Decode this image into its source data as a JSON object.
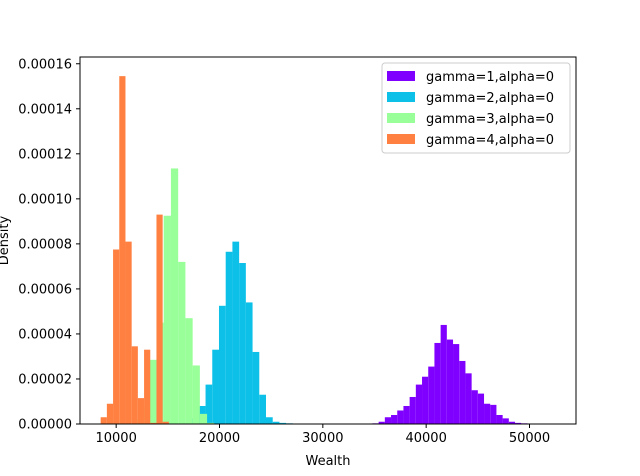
{
  "chart_data": {
    "type": "bar",
    "subtype": "histogram",
    "xlabel": "Wealth",
    "ylabel": "Density",
    "xlim": [
      6500,
      54500
    ],
    "ylim": [
      0,
      0.000163
    ],
    "xticks": [
      {
        "value": 10000,
        "label": "10000"
      },
      {
        "value": 20000,
        "label": "20000"
      },
      {
        "value": 30000,
        "label": "30000"
      },
      {
        "value": 40000,
        "label": "40000"
      },
      {
        "value": 50000,
        "label": "50000"
      }
    ],
    "yticks": [
      {
        "value": 0,
        "label": "0.00000"
      },
      {
        "value": 2e-05,
        "label": "0.00002"
      },
      {
        "value": 4e-05,
        "label": "0.00004"
      },
      {
        "value": 6e-05,
        "label": "0.00006"
      },
      {
        "value": 8e-05,
        "label": "0.00008"
      },
      {
        "value": 0.0001,
        "label": "0.00010"
      },
      {
        "value": 0.00012,
        "label": "0.00012"
      },
      {
        "value": 0.00014,
        "label": "0.00014"
      },
      {
        "value": 0.00016,
        "label": "0.00016"
      }
    ],
    "grid": false,
    "legend_position": "upper right",
    "series": [
      {
        "name": "gamma=1,alpha=0",
        "color": "#8000ff",
        "bin_start": 34800,
        "bin_width": 600,
        "values": [
          3e-07,
          1e-06,
          3e-06,
          4e-06,
          6e-06,
          8e-06,
          1.2e-05,
          1.75e-05,
          2.1e-05,
          2.55e-05,
          3.6e-05,
          4.4e-05,
          3.75e-05,
          3.55e-05,
          2.8e-05,
          2.25e-05,
          1.5e-05,
          1.35e-05,
          9e-06,
          8.5e-06,
          4e-06,
          2.5e-06,
          1e-06,
          5e-07,
          3e-07,
          1e-07,
          1e-07,
          1e-07,
          1e-07,
          1e-07
        ]
      },
      {
        "name": "gamma=2,alpha=0",
        "color": "#0cc0e8",
        "bin_start": 16700,
        "bin_width": 650,
        "values": [
          5e-07,
          2.5e-06,
          8e-06,
          1.75e-05,
          3.3e-05,
          5.25e-05,
          7.65e-05,
          8.1e-05,
          7.15e-05,
          5.4e-05,
          3.2e-05,
          1.3e-05,
          3e-06,
          1e-06,
          5e-07,
          3e-07
        ]
      },
      {
        "name": "gamma=3,alpha=0",
        "color": "#99ff99",
        "bin_start": 11800,
        "bin_width": 700,
        "values": [
          2e-06,
          7.5e-06,
          2.85e-05,
          4.5e-05,
          9.25e-05,
          0.0001135,
          7.2e-05,
          4.7e-05,
          2.6e-05,
          4.5e-06,
          5e-07
        ]
      },
      {
        "name": "gamma=4,alpha=0",
        "color": "#ff8040",
        "bin_start": 8500,
        "bin_width": 600,
        "values": [
          3e-06,
          9e-06,
          7.75e-05,
          0.0001545,
          8.1e-05,
          3.45e-05,
          1.15e-05,
          3.3e-05,
          5e-07,
          9.3e-05,
          1e-06,
          2e-07
        ]
      }
    ]
  }
}
